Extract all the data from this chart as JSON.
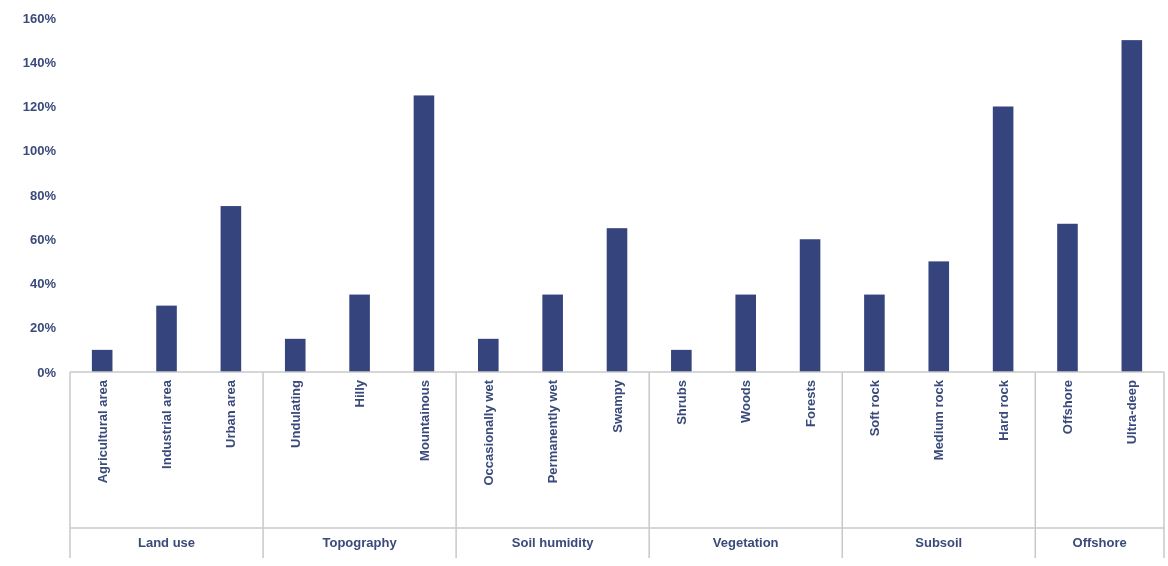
{
  "chart_data": {
    "type": "bar",
    "categories": [
      "Agricultural area",
      "Industrial area",
      "Urban area",
      "Undulating",
      "Hilly",
      "Mountainous",
      "Occasionally wet",
      "Permanently wet",
      "Swampy",
      "Shrubs",
      "Woods",
      "Forests",
      "Soft rock",
      "Medium rock",
      "Hard rock",
      "Offshore",
      "Ultra-deep"
    ],
    "values": [
      10,
      30,
      75,
      15,
      35,
      125,
      15,
      35,
      65,
      10,
      35,
      60,
      35,
      50,
      120,
      67,
      150
    ],
    "color": "#36447e",
    "ylim": [
      0,
      160
    ],
    "yticks": [
      {
        "value": 0,
        "label": "0%"
      },
      {
        "value": 20,
        "label": "20%"
      },
      {
        "value": 40,
        "label": "40%"
      },
      {
        "value": 60,
        "label": "60%"
      },
      {
        "value": 80,
        "label": "80%"
      },
      {
        "value": 100,
        "label": "100%"
      },
      {
        "value": 120,
        "label": "120%"
      },
      {
        "value": 140,
        "label": "140%"
      },
      {
        "value": 160,
        "label": "160%"
      }
    ],
    "annotations": [
      "Land use",
      "Topography",
      "Soil humidity",
      "Vegetation",
      "Subsoil",
      "Offshore"
    ]
  }
}
